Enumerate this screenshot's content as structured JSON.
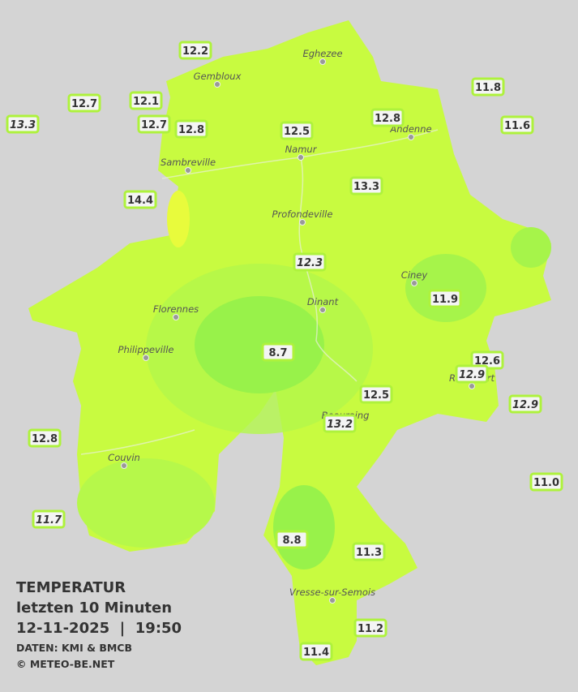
{
  "map": {
    "title": {
      "line1": "TEMPERATUR",
      "line2": "letzten 10 Minuten",
      "line3": "12-11-2025  |  19:50",
      "source": "DATEN: KMI & BMCB",
      "copyright": "© METEO-BE.NET"
    },
    "towns": [
      "Eghezee",
      "Gembloux",
      "Andenne",
      "Namur",
      "Sambreville",
      "Profondeville",
      "Ciney",
      "Dinant",
      "Florennes",
      "Philippeville",
      "Rochefort",
      "Beauraing",
      "Couvin",
      "Vresse-sur-Semois"
    ],
    "stations": [
      {
        "label": "12.2",
        "italic": false
      },
      {
        "label": "12.7",
        "italic": false
      },
      {
        "label": "12.1",
        "italic": false
      },
      {
        "label": "13.3",
        "italic": true
      },
      {
        "label": "12.7",
        "italic": false
      },
      {
        "label": "12.8",
        "italic": false
      },
      {
        "label": "12.5",
        "italic": false
      },
      {
        "label": "12.8",
        "italic": false
      },
      {
        "label": "11.8",
        "italic": false
      },
      {
        "label": "11.6",
        "italic": false
      },
      {
        "label": "13.3",
        "italic": false
      },
      {
        "label": "14.4",
        "italic": false
      },
      {
        "label": "12.3",
        "italic": true
      },
      {
        "label": "11.9",
        "italic": false
      },
      {
        "label": "8.7",
        "italic": false
      },
      {
        "label": "12.6",
        "italic": false
      },
      {
        "label": "12.9",
        "italic": true
      },
      {
        "label": "12.5",
        "italic": false
      },
      {
        "label": "12.9",
        "italic": true
      },
      {
        "label": "13.2",
        "italic": true
      },
      {
        "label": "12.8",
        "italic": false
      },
      {
        "label": "11.0",
        "italic": false
      },
      {
        "label": "11.7",
        "italic": true
      },
      {
        "label": "8.8",
        "italic": false
      },
      {
        "label": "11.3",
        "italic": false
      },
      {
        "label": "11.2",
        "italic": false
      },
      {
        "label": "11.4",
        "italic": false
      }
    ]
  }
}
